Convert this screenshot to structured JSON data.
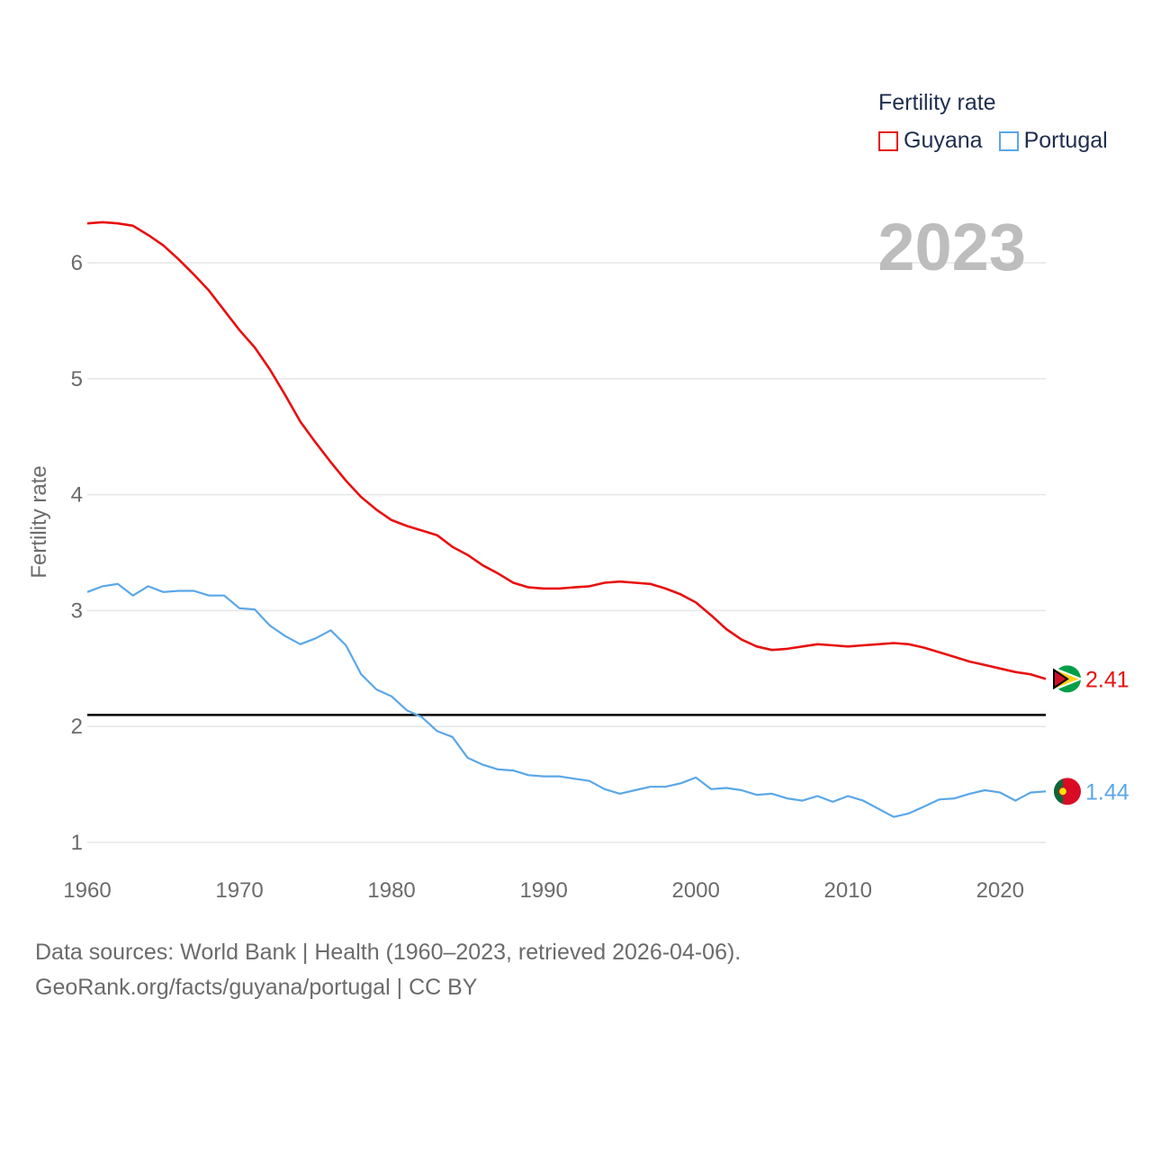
{
  "colors": {
    "guyana": "#e8100f",
    "portugal": "#5aa7e8",
    "grid": "#e6e6e6",
    "axis_text": "#6b6b6b",
    "reference": "#000000",
    "year": "#bdbdbd"
  },
  "legend": {
    "title": "Fertility rate",
    "items": [
      {
        "label": "Guyana",
        "color": "#e8100f"
      },
      {
        "label": "Portugal",
        "color": "#5aa7e8"
      }
    ]
  },
  "year_label": "2023",
  "footer": {
    "line1": "Data sources: World Bank | Health (1960–2023, retrieved 2026-04-06).",
    "line2": "GeoRank.org/facts/guyana/portugal | CC BY"
  },
  "chart_data": {
    "type": "line",
    "title": "Fertility rate",
    "xlabel": "",
    "ylabel": "Fertility rate",
    "xlim": [
      1960,
      2023
    ],
    "ylim": [
      0.85,
      6.55
    ],
    "xticks": [
      1960,
      1970,
      1980,
      1990,
      2000,
      2010,
      2020
    ],
    "yticks": [
      1,
      2,
      3,
      4,
      5,
      6
    ],
    "grid": true,
    "legend_position": "top-right",
    "reference_line": {
      "y": 2.1
    },
    "x": [
      1960,
      1961,
      1962,
      1963,
      1964,
      1965,
      1966,
      1967,
      1968,
      1969,
      1970,
      1971,
      1972,
      1973,
      1974,
      1975,
      1976,
      1977,
      1978,
      1979,
      1980,
      1981,
      1982,
      1983,
      1984,
      1985,
      1986,
      1987,
      1988,
      1989,
      1990,
      1991,
      1992,
      1993,
      1994,
      1995,
      1996,
      1997,
      1998,
      1999,
      2000,
      2001,
      2002,
      2003,
      2004,
      2005,
      2006,
      2007,
      2008,
      2009,
      2010,
      2011,
      2012,
      2013,
      2014,
      2015,
      2016,
      2017,
      2018,
      2019,
      2020,
      2021,
      2022,
      2023
    ],
    "series": [
      {
        "name": "Guyana",
        "end_label": "2.41",
        "values": [
          6.34,
          6.35,
          6.34,
          6.32,
          6.24,
          6.15,
          6.03,
          5.9,
          5.76,
          5.59,
          5.42,
          5.27,
          5.08,
          4.86,
          4.63,
          4.45,
          4.28,
          4.12,
          3.98,
          3.87,
          3.78,
          3.73,
          3.69,
          3.65,
          3.55,
          3.48,
          3.39,
          3.32,
          3.24,
          3.2,
          3.19,
          3.19,
          3.2,
          3.21,
          3.24,
          3.25,
          3.24,
          3.23,
          3.19,
          3.14,
          3.07,
          2.96,
          2.84,
          2.75,
          2.69,
          2.66,
          2.67,
          2.69,
          2.71,
          2.7,
          2.69,
          2.7,
          2.71,
          2.72,
          2.71,
          2.68,
          2.64,
          2.6,
          2.56,
          2.53,
          2.5,
          2.47,
          2.45,
          2.41
        ]
      },
      {
        "name": "Portugal",
        "end_label": "1.44",
        "values": [
          3.16,
          3.21,
          3.23,
          3.13,
          3.21,
          3.16,
          3.17,
          3.17,
          3.13,
          3.13,
          3.02,
          3.01,
          2.87,
          2.78,
          2.71,
          2.76,
          2.83,
          2.7,
          2.45,
          2.32,
          2.26,
          2.14,
          2.08,
          1.96,
          1.91,
          1.73,
          1.67,
          1.63,
          1.62,
          1.58,
          1.57,
          1.57,
          1.55,
          1.53,
          1.46,
          1.42,
          1.45,
          1.48,
          1.48,
          1.51,
          1.56,
          1.46,
          1.47,
          1.45,
          1.41,
          1.42,
          1.38,
          1.36,
          1.4,
          1.35,
          1.4,
          1.36,
          1.29,
          1.22,
          1.25,
          1.31,
          1.37,
          1.38,
          1.42,
          1.45,
          1.43,
          1.36,
          1.43,
          1.44
        ]
      }
    ]
  }
}
